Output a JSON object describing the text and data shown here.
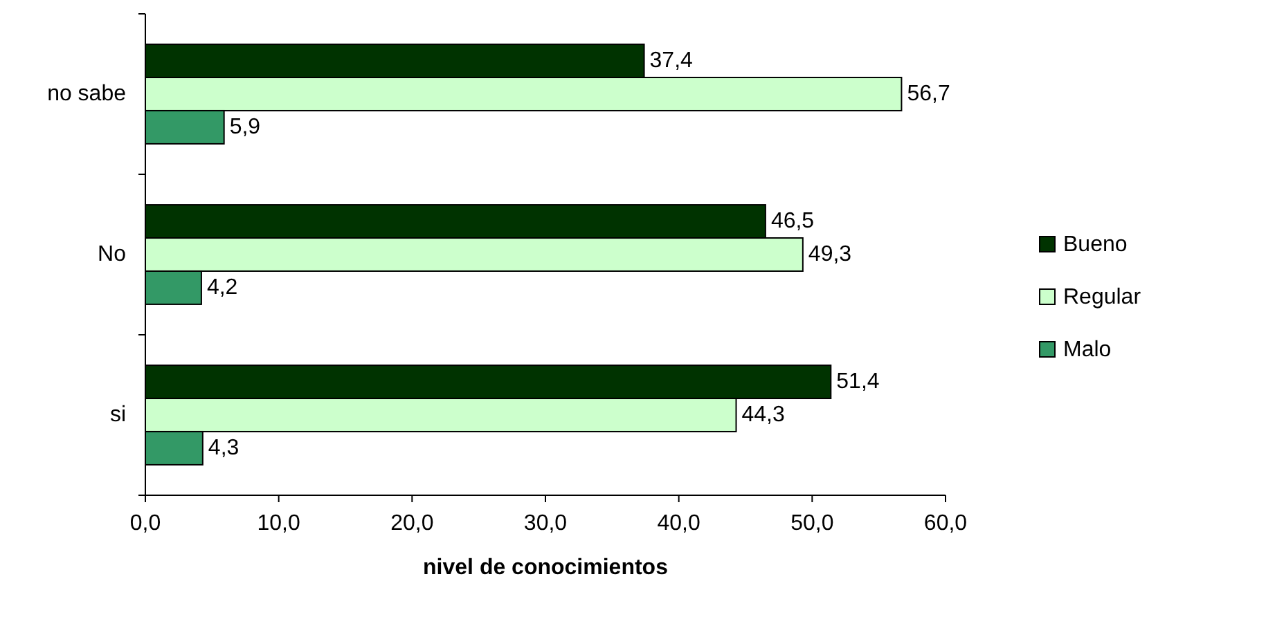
{
  "chart_data": {
    "type": "bar",
    "orientation": "horizontal",
    "xlabel": "nivel de conocimientos",
    "categories": [
      "no sabe",
      "No",
      "si"
    ],
    "series": [
      {
        "name": "Bueno",
        "color": "#003300",
        "values": [
          37.4,
          46.5,
          51.4
        ],
        "value_labels": [
          "37,4",
          "46,5",
          "51,4"
        ]
      },
      {
        "name": "Regular",
        "color": "#ccffcc",
        "values": [
          56.7,
          49.3,
          44.3
        ],
        "value_labels": [
          "56,7",
          "49,3",
          "44,3"
        ]
      },
      {
        "name": "Malo",
        "color": "#339966",
        "values": [
          5.9,
          4.2,
          4.3
        ],
        "value_labels": [
          "5,9",
          "4,2",
          "4,3"
        ]
      }
    ],
    "xlim": [
      0,
      60
    ],
    "xticks": [
      {
        "value": 0,
        "label": "0,0"
      },
      {
        "value": 10,
        "label": "10,0"
      },
      {
        "value": 20,
        "label": "20,0"
      },
      {
        "value": 30,
        "label": "30,0"
      },
      {
        "value": 40,
        "label": "40,0"
      },
      {
        "value": 50,
        "label": "50,0"
      },
      {
        "value": 60,
        "label": "60,0"
      }
    ],
    "grid": false,
    "legend": "right"
  }
}
